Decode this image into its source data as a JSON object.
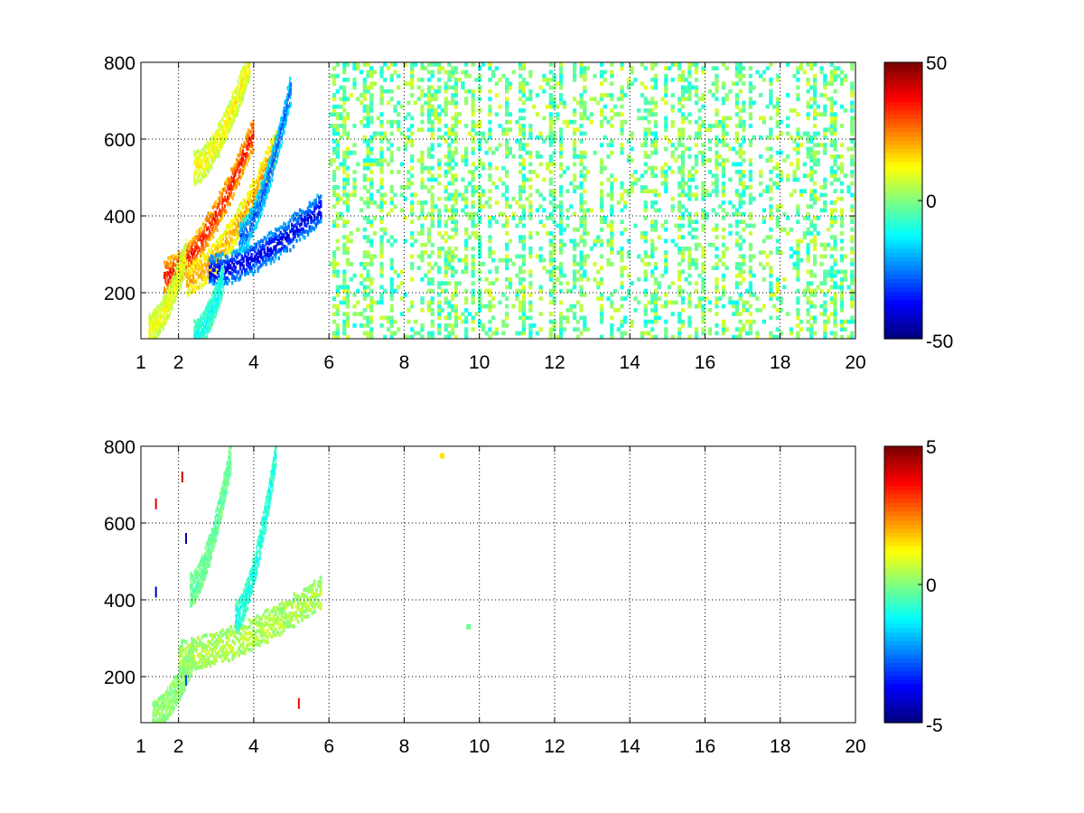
{
  "chart_data": [
    {
      "type": "heatmap",
      "title": "",
      "xlabel": "",
      "ylabel": "",
      "xlim": [
        1,
        20
      ],
      "ylim": [
        80,
        800
      ],
      "x_ticks": [
        "1",
        "2",
        "4",
        "6",
        "8",
        "10",
        "12",
        "14",
        "16",
        "18",
        "20"
      ],
      "x_tick_values": [
        1,
        2,
        4,
        6,
        8,
        10,
        12,
        14,
        16,
        18,
        20
      ],
      "y_ticks": [
        "200",
        "400",
        "600",
        "800"
      ],
      "y_tick_values": [
        200,
        400,
        600,
        800
      ],
      "grid": true,
      "colormap": "jet",
      "colorbar": {
        "min": -50,
        "max": 50,
        "ticks": [
          "50",
          "0",
          "-50"
        ],
        "tick_values": [
          50,
          0,
          -50
        ]
      },
      "features": [
        {
          "type": "band",
          "x_range": [
            1.6,
            4.0
          ],
          "y_start": 240,
          "y_end": 620,
          "value": 38
        },
        {
          "type": "band",
          "x_range": [
            2.2,
            4.6
          ],
          "y_start": 230,
          "y_end": 590,
          "value": 22
        },
        {
          "type": "band",
          "x_range": [
            2.8,
            5.8
          ],
          "y_start": 250,
          "y_end": 420,
          "value": -42
        },
        {
          "type": "band",
          "x_range": [
            3.6,
            5.0
          ],
          "y_start": 340,
          "y_end": 740,
          "value": -30
        },
        {
          "type": "band",
          "x_range": [
            2.4,
            3.9
          ],
          "y_start": 520,
          "y_end": 800,
          "value": 14
        },
        {
          "type": "band",
          "x_range": [
            1.2,
            2.2
          ],
          "y_start": 100,
          "y_end": 300,
          "value": 12
        },
        {
          "type": "band",
          "x_range": [
            2.4,
            3.2
          ],
          "y_start": 80,
          "y_end": 240,
          "value": -12
        }
      ],
      "background": {
        "x_range": [
          6,
          20
        ],
        "value_range": [
          -12,
          10
        ],
        "coverage": 0.25
      }
    },
    {
      "type": "heatmap",
      "title": "",
      "xlabel": "",
      "ylabel": "",
      "xlim": [
        1,
        20
      ],
      "ylim": [
        80,
        800
      ],
      "x_ticks": [
        "1",
        "2",
        "4",
        "6",
        "8",
        "10",
        "12",
        "14",
        "16",
        "18",
        "20"
      ],
      "x_tick_values": [
        1,
        2,
        4,
        6,
        8,
        10,
        12,
        14,
        16,
        18,
        20
      ],
      "y_ticks": [
        "200",
        "400",
        "600",
        "800"
      ],
      "y_tick_values": [
        200,
        400,
        600,
        800
      ],
      "grid": true,
      "colormap": "jet",
      "colorbar": {
        "min": -5,
        "max": 5,
        "ticks": [
          "5",
          "0",
          "-5"
        ],
        "tick_values": [
          5,
          0,
          -5
        ]
      },
      "features": [
        {
          "type": "band",
          "x_range": [
            2.0,
            5.8
          ],
          "y_start": 250,
          "y_end": 420,
          "value": 0.6
        },
        {
          "type": "band",
          "x_range": [
            3.5,
            4.6
          ],
          "y_start": 350,
          "y_end": 790,
          "value": -1.2
        },
        {
          "type": "band",
          "x_range": [
            2.3,
            3.4
          ],
          "y_start": 420,
          "y_end": 780,
          "value": -0.3
        },
        {
          "type": "band",
          "x_range": [
            1.3,
            2.4
          ],
          "y_start": 90,
          "y_end": 260,
          "value": 0.2
        }
      ],
      "extra_points": [
        {
          "x": 9.0,
          "y": 775,
          "value": 1.5
        },
        {
          "x": 9.7,
          "y": 330,
          "value": -0.2
        }
      ],
      "outliers": [
        {
          "x": 1.4,
          "y": 650,
          "value": 4
        },
        {
          "x": 1.4,
          "y": 420,
          "value": -4.5
        },
        {
          "x": 2.2,
          "y": 560,
          "value": -4.8
        },
        {
          "x": 2.1,
          "y": 720,
          "value": 4.2
        },
        {
          "x": 5.2,
          "y": 130,
          "value": 3.8
        },
        {
          "x": 2.2,
          "y": 190,
          "value": -3
        }
      ]
    }
  ]
}
